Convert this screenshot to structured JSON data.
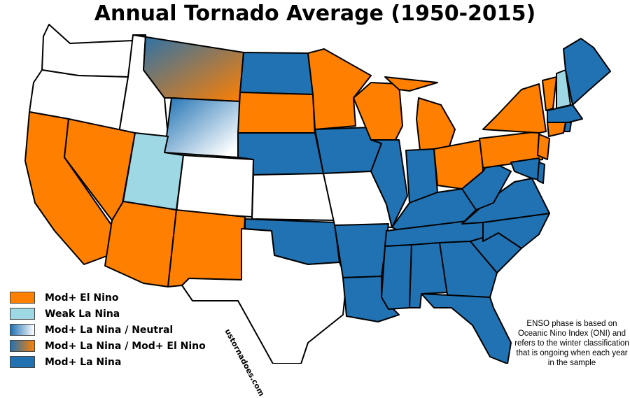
{
  "title": "Annual Tornado Average (1950-2015)",
  "colors": {
    "mod_el_nino": "#ff7f00",
    "weak_la_nina": "#9ed8e4",
    "mod_la_nina": "#2072b3",
    "neutral": "#ffffff",
    "border": "#000000"
  },
  "legend": [
    {
      "label": "Mod+ El Nino",
      "fill": "#ff7f00"
    },
    {
      "label": "Weak La Nina",
      "fill": "#9ed8e4"
    },
    {
      "label": "Mod+ La Nina / Neutral",
      "fill": "gradient-blue-white"
    },
    {
      "label": "Mod+ La Nina / Mod+ El Nino",
      "fill": "gradient-blue-orange"
    },
    {
      "label": "Mod+ La Nina",
      "fill": "#2072b3"
    }
  ],
  "note": "ENSO phase is based on Oceanic Nino Index (ONI) and refers to the winter classification that is ongoing when each year in the sample",
  "watermark": "ustornadoes.com"
}
